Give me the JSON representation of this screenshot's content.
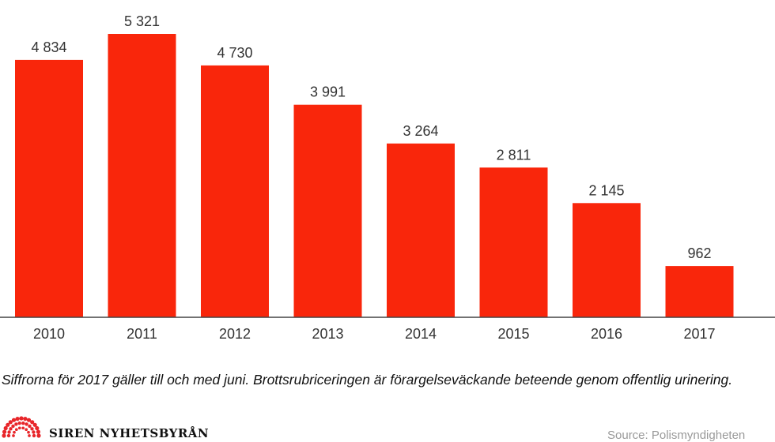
{
  "chart_data": {
    "type": "bar",
    "categories": [
      "2010",
      "2011",
      "2012",
      "2013",
      "2014",
      "2015",
      "2016",
      "2017"
    ],
    "values": [
      4834,
      5321,
      4730,
      3991,
      3264,
      2811,
      2145,
      962
    ],
    "value_labels": [
      "4 834",
      "5 321",
      "4 730",
      "3 991",
      "3 264",
      "2 811",
      "2 145",
      "962"
    ],
    "bar_color": "#f9260b",
    "axis_color": "#444444",
    "ylim": [
      0,
      5321
    ],
    "grid": false,
    "legend": "none"
  },
  "footnote": "Siffrorna för 2017 gäller till och med juni. Brottsrubriceringen är förargelseväckande beteende genom offentlig urinering.",
  "logo": {
    "text": "SIREN NYHETSBYRÅN",
    "icon": "siren-logo-icon",
    "color": "#e8262a"
  },
  "source": "Source: Polismyndigheten"
}
